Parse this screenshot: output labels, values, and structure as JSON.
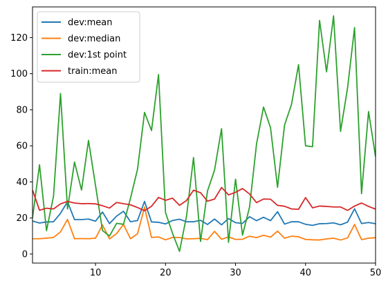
{
  "chart_data": {
    "type": "line",
    "title": "",
    "xlabel": "",
    "ylabel": "",
    "xlim": [
      1,
      50
    ],
    "ylim": [
      -5,
      137
    ],
    "xticks": [
      10,
      20,
      30,
      40,
      50
    ],
    "yticks": [
      0,
      20,
      40,
      60,
      80,
      100,
      120
    ],
    "grid": false,
    "legend_position": "top-left",
    "x": [
      1,
      2,
      3,
      4,
      5,
      6,
      7,
      8,
      9,
      10,
      11,
      12,
      13,
      14,
      15,
      16,
      17,
      18,
      19,
      20,
      21,
      22,
      23,
      24,
      25,
      26,
      27,
      28,
      29,
      30,
      31,
      32,
      33,
      34,
      35,
      36,
      37,
      38,
      39,
      40,
      41,
      42,
      43,
      44,
      45,
      46,
      47,
      48,
      49,
      50
    ],
    "series": [
      {
        "name": "dev:mean",
        "color": "#1f77b4",
        "values": [
          18.3,
          17.2,
          17.8,
          17.9,
          22.6,
          29.0,
          19.1,
          19.1,
          19.4,
          18.2,
          23.3,
          16.9,
          21.0,
          23.7,
          17.9,
          18.6,
          29.2,
          17.8,
          17.6,
          16.7,
          18.6,
          19.3,
          17.9,
          17.9,
          18.7,
          16.4,
          19.4,
          16.2,
          19.7,
          17.4,
          17.0,
          20.7,
          18.5,
          20.4,
          18.5,
          23.5,
          16.6,
          17.9,
          17.9,
          16.5,
          15.9,
          16.8,
          16.9,
          17.3,
          16.2,
          17.7,
          25.1,
          16.9,
          17.5,
          16.8
        ]
      },
      {
        "name": "dev:median",
        "color": "#ff7f0e",
        "values": [
          8.5,
          8.5,
          8.8,
          9.2,
          12.3,
          19.2,
          8.5,
          8.6,
          8.5,
          8.8,
          16.1,
          8.4,
          11.3,
          16.4,
          8.5,
          11.2,
          26.0,
          9.2,
          9.5,
          7.9,
          9.2,
          9.2,
          8.4,
          8.5,
          8.7,
          8.0,
          12.6,
          8.2,
          9.5,
          8.1,
          8.2,
          9.9,
          9.1,
          10.4,
          9.4,
          12.7,
          8.8,
          9.9,
          9.6,
          8.1,
          7.9,
          7.8,
          8.4,
          8.8,
          7.8,
          8.9,
          16.4,
          8.0,
          8.8,
          9.1
        ]
      },
      {
        "name": "dev:1st point",
        "color": "#2ca02c",
        "values": [
          20,
          49.5,
          13,
          32,
          89,
          25,
          51,
          35.5,
          63,
          38,
          13,
          10,
          17,
          16.5,
          31,
          47,
          78.5,
          68.5,
          99.5,
          23,
          11.5,
          1.5,
          21,
          53.5,
          7,
          35,
          46.5,
          69.5,
          6.5,
          41.5,
          10.5,
          26,
          61,
          81.5,
          70,
          37,
          71.5,
          83,
          105,
          60,
          59.5,
          129.5,
          101,
          132,
          68,
          92,
          125.5,
          33.5,
          79,
          54
        ]
      },
      {
        "name": "train:mean",
        "color": "#d62728",
        "values": [
          35.5,
          24.3,
          25.4,
          25.0,
          27.8,
          29.2,
          28.3,
          27.9,
          28.0,
          27.8,
          26.8,
          25.5,
          28.6,
          27.9,
          27.3,
          25.8,
          24.0,
          26.5,
          31.4,
          29.8,
          31.0,
          27.0,
          29.7,
          35.4,
          34.0,
          29.3,
          30.5,
          36.9,
          32.8,
          34.2,
          36.3,
          33.3,
          28.5,
          30.5,
          30.4,
          27.0,
          26.5,
          25.0,
          24.8,
          31.3,
          25.6,
          26.6,
          26.4,
          26.1,
          26.1,
          24.2,
          26.6,
          28.3,
          26.4,
          24.9
        ]
      }
    ]
  }
}
